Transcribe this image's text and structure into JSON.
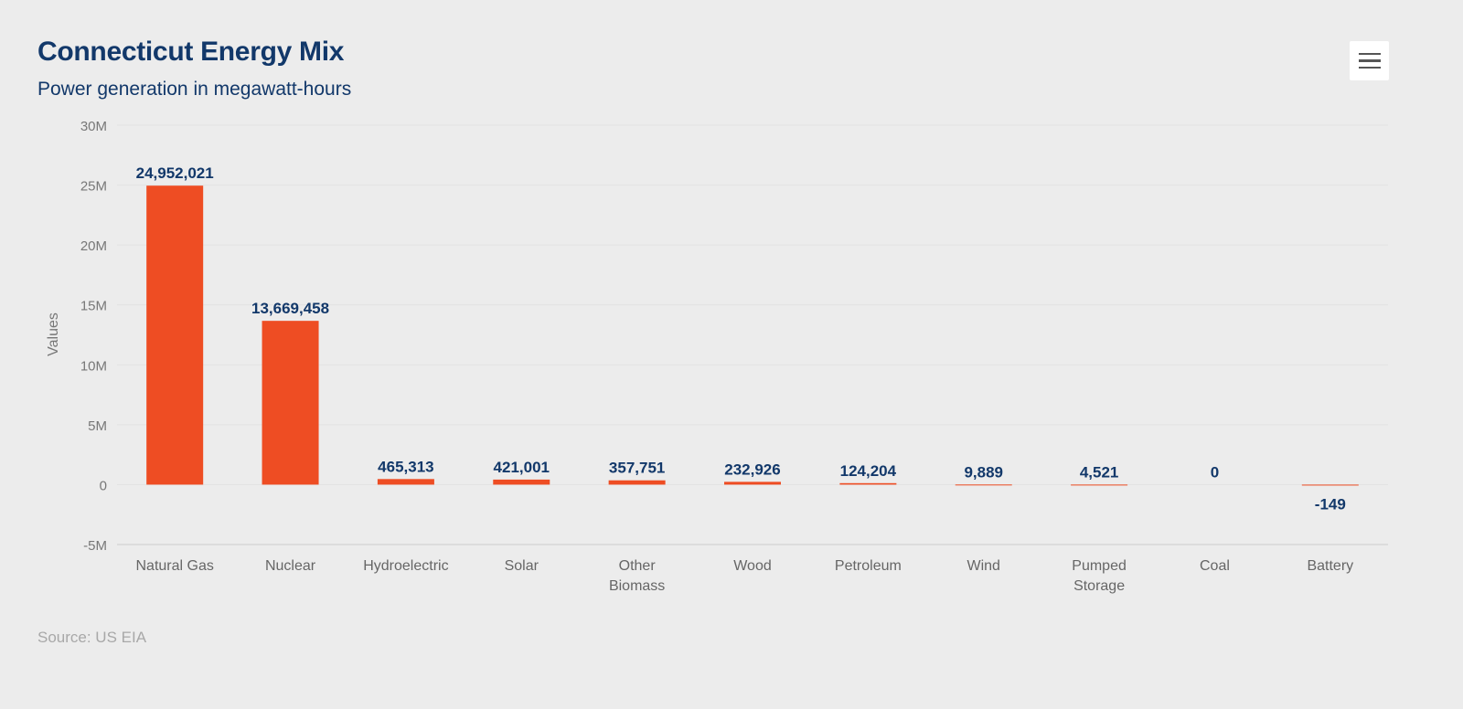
{
  "chart_data": {
    "type": "bar",
    "title": "Connecticut Energy Mix",
    "subtitle": "Power generation in megawatt-hours",
    "ylabel": "Values",
    "xlabel": "",
    "ylim": [
      -5000000,
      30000000
    ],
    "yticks": [
      -5000000,
      0,
      5000000,
      10000000,
      15000000,
      20000000,
      25000000,
      30000000
    ],
    "ytick_labels": [
      "-5M",
      "0",
      "5M",
      "10M",
      "15M",
      "20M",
      "25M",
      "30M"
    ],
    "categories": [
      [
        "Natural Gas"
      ],
      [
        "Nuclear"
      ],
      [
        "Hydroelectric"
      ],
      [
        "Solar"
      ],
      [
        "Other",
        "Biomass"
      ],
      [
        "Wood"
      ],
      [
        "Petroleum"
      ],
      [
        "Wind"
      ],
      [
        "Pumped",
        "Storage"
      ],
      [
        "Coal"
      ],
      [
        "Battery"
      ]
    ],
    "values": [
      24952021,
      13669458,
      465313,
      421001,
      357751,
      232926,
      124204,
      9889,
      4521,
      0,
      -149
    ],
    "data_labels": [
      "24,952,021",
      "13,669,458",
      "465,313",
      "421,001",
      "357,751",
      "232,926",
      "124,204",
      "9,889",
      "4,521",
      "0",
      "-149"
    ],
    "grid": true,
    "legend": "none",
    "bar_color": "#ee4d23",
    "source": "Source: US EIA"
  },
  "menu": {
    "icon": "hamburger-menu-icon"
  }
}
